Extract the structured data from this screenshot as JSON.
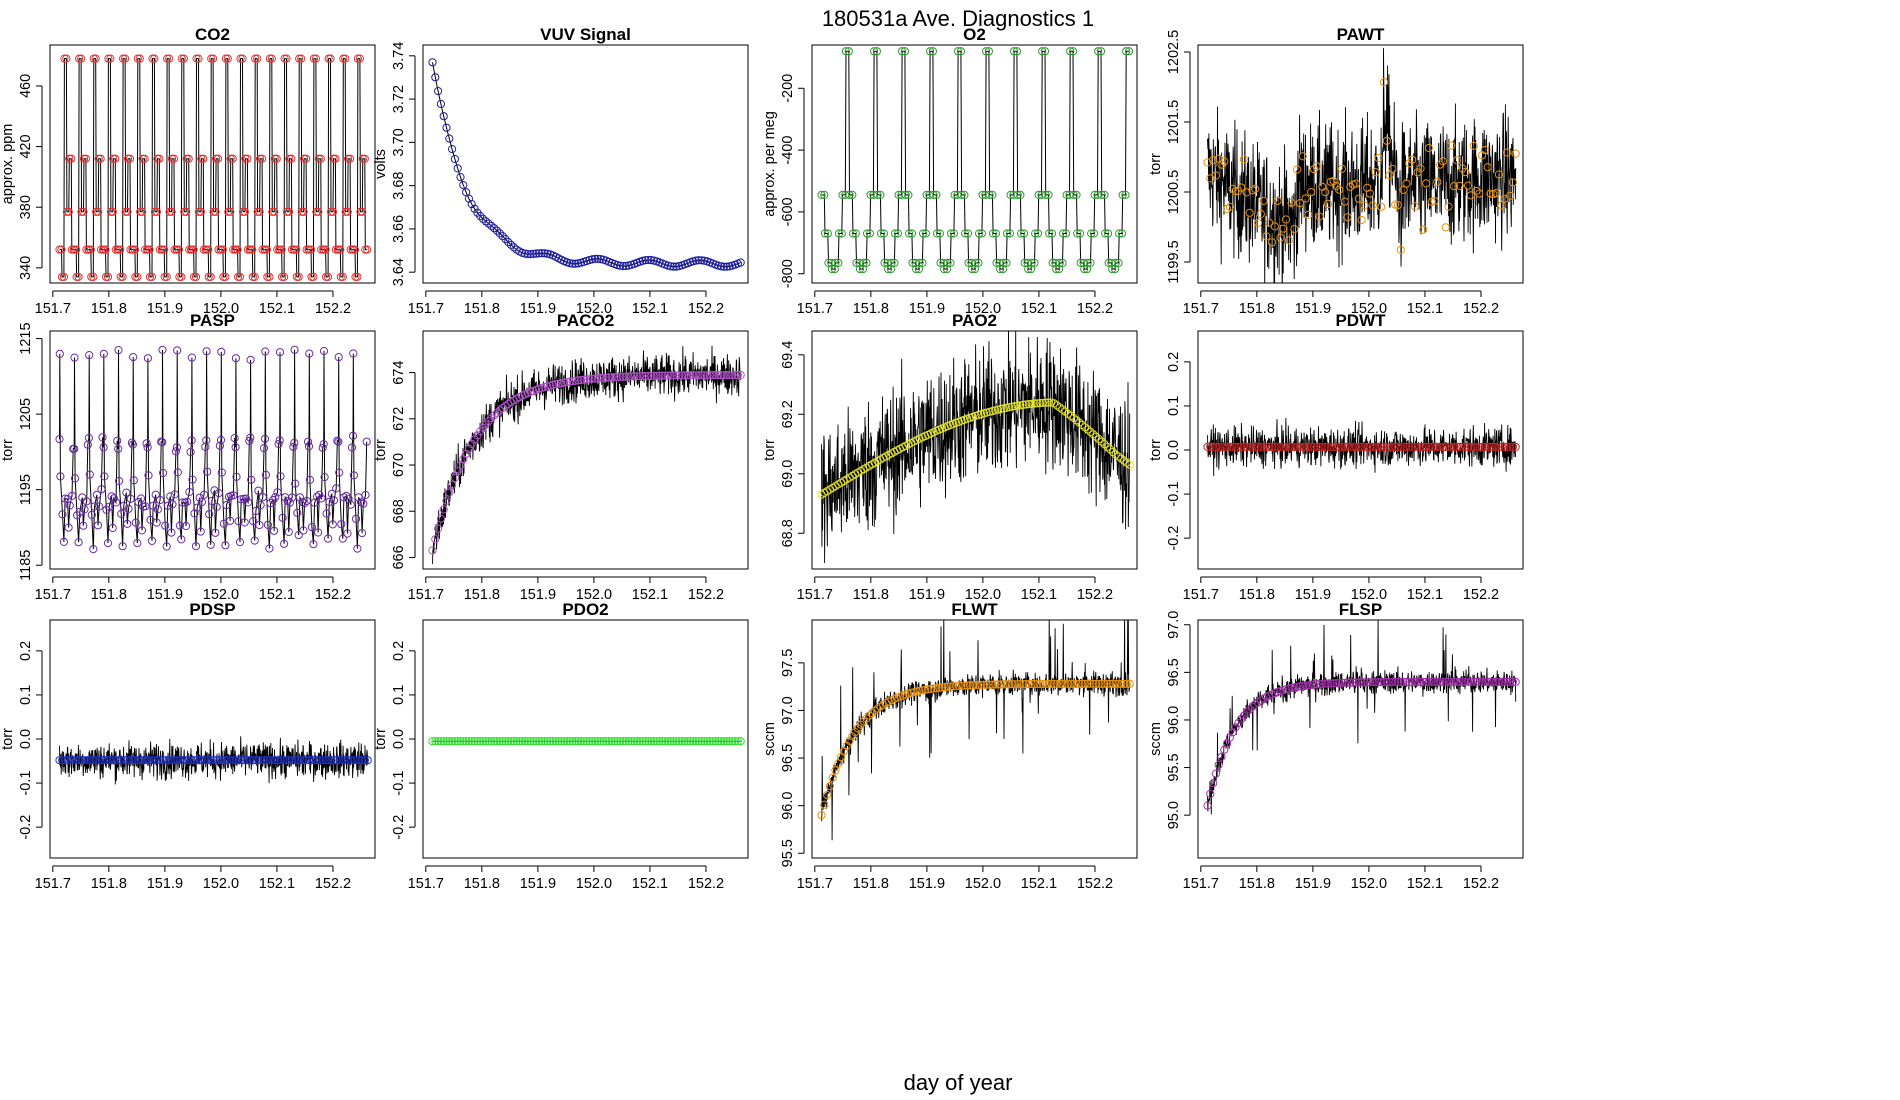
{
  "figure": {
    "title": "180531a   Ave. Diagnostics 1",
    "xlabel": "day of year"
  },
  "colors": {
    "trace": "#000000",
    "co2": "#e03030",
    "vuv": "#1a1aa0",
    "o2": "#2a9a2a",
    "pawt": "#e8900a",
    "pasp": "#6a2aa8",
    "paco2": "#b050c8",
    "pao2": "#e0e020",
    "pdwt": "#c02020",
    "pdsp": "#2030c0",
    "pdo2": "#30e030",
    "flwt": "#e8900a",
    "flsp": "#a030a8"
  },
  "chart_data": [
    {
      "id": "co2",
      "type": "line",
      "title": "CO2",
      "ylabel": "approx. ppm",
      "xlim": [
        151.695,
        152.275
      ],
      "ylim": [
        330,
        487
      ],
      "xticks": [
        "151.7",
        "151.8",
        "151.9",
        "152.0",
        "152.1",
        "152.2"
      ],
      "yticks": [
        "340",
        "380",
        "420",
        "460"
      ],
      "series": [
        {
          "name": "CO2",
          "pattern": "cycle",
          "levels": [
            352,
            334,
            478,
            377,
            412,
            352
          ],
          "cycles": 21,
          "marker_color": "#e03030"
        }
      ]
    },
    {
      "id": "vuv",
      "type": "line",
      "title": "VUV Signal",
      "ylabel": "volts",
      "xlim": [
        151.695,
        152.275
      ],
      "ylim": [
        3.635,
        3.745
      ],
      "xticks": [
        "151.7",
        "151.8",
        "151.9",
        "152.0",
        "152.1",
        "152.2"
      ],
      "yticks": [
        "3.64",
        "3.66",
        "3.68",
        "3.70",
        "3.72",
        "3.74"
      ],
      "series": [
        {
          "name": "VUV",
          "pattern": "decay",
          "start": 3.737,
          "end": 3.644,
          "tau": 0.06,
          "wiggle": 0.0015,
          "marker_color": "#1a1aa0"
        }
      ]
    },
    {
      "id": "o2",
      "type": "line",
      "title": "O2",
      "ylabel": "approx. per meg",
      "xlim": [
        151.695,
        152.275
      ],
      "ylim": [
        -830,
        -60
      ],
      "xticks": [
        "151.7",
        "151.8",
        "151.9",
        "152.0",
        "152.1",
        "152.2"
      ],
      "yticks": [
        "-800",
        "-600",
        "-400",
        "-200"
      ],
      "series": [
        {
          "name": "O2",
          "pattern": "cycle",
          "levels": [
            -545,
            -670,
            -765,
            -785,
            -765,
            -670,
            -545,
            -80
          ],
          "cycles": 11,
          "marker_color": "#2a9a2a"
        }
      ]
    },
    {
      "id": "pawt",
      "type": "line",
      "title": "PAWT",
      "ylabel": "torr",
      "xlim": [
        151.695,
        152.275
      ],
      "ylim": [
        1199.2,
        1202.6
      ],
      "xticks": [
        "151.7",
        "151.8",
        "151.9",
        "152.0",
        "152.1",
        "152.2"
      ],
      "yticks": [
        "1199.5",
        "1200.5",
        "1201.5",
        "1202.5"
      ],
      "series": [
        {
          "name": "PAWT",
          "pattern": "pawt",
          "noise": 0.45,
          "marker_color": "#e8900a"
        }
      ]
    },
    {
      "id": "pasp",
      "type": "line",
      "title": "PASP",
      "ylabel": "torr",
      "xlim": [
        151.695,
        152.275
      ],
      "ylim": [
        1184.5,
        1216
      ],
      "xticks": [
        "151.7",
        "151.8",
        "151.9",
        "152.0",
        "152.1",
        "152.2"
      ],
      "yticks": [
        "1185",
        "1195",
        "1205",
        "1215"
      ],
      "series": [
        {
          "name": "PASP",
          "pattern": "pasp",
          "cycles": 21,
          "marker_color": "#6a2aa8"
        }
      ]
    },
    {
      "id": "paco2",
      "type": "line",
      "title": "PACO2",
      "ylabel": "torr",
      "xlim": [
        151.695,
        152.275
      ],
      "ylim": [
        665.5,
        675.8
      ],
      "xticks": [
        "151.7",
        "151.8",
        "151.9",
        "152.0",
        "152.1",
        "152.2"
      ],
      "yticks": [
        "666",
        "668",
        "670",
        "672",
        "674"
      ],
      "series": [
        {
          "name": "PACO2",
          "pattern": "rise",
          "start": 666.3,
          "end": 673.9,
          "tau": 0.075,
          "noise": 0.45,
          "marker_color": "#b050c8"
        }
      ]
    },
    {
      "id": "pao2",
      "type": "line",
      "title": "PAO2",
      "ylabel": "torr",
      "xlim": [
        151.695,
        152.275
      ],
      "ylim": [
        68.68,
        69.48
      ],
      "xticks": [
        "151.7",
        "151.8",
        "151.9",
        "152.0",
        "152.1",
        "152.2"
      ],
      "yticks": [
        "68.8",
        "69.0",
        "69.2",
        "69.4"
      ],
      "series": [
        {
          "name": "PAO2",
          "pattern": "arch",
          "noise": 0.11,
          "marker_color": "#e0e020"
        }
      ]
    },
    {
      "id": "pdwt",
      "type": "line",
      "title": "PDWT",
      "ylabel": "torr",
      "xlim": [
        151.695,
        152.275
      ],
      "ylim": [
        -0.27,
        0.27
      ],
      "xticks": [
        "151.7",
        "151.8",
        "151.9",
        "152.0",
        "152.1",
        "152.2"
      ],
      "yticks": [
        "-0.2",
        "-0.1",
        "0.0",
        "0.1",
        "0.2"
      ],
      "series": [
        {
          "name": "PDWT",
          "pattern": "flat",
          "level": 0.007,
          "noise": 0.022,
          "marker_color": "#c02020"
        }
      ]
    },
    {
      "id": "pdsp",
      "type": "line",
      "title": "PDSP",
      "ylabel": "torr",
      "xlim": [
        151.695,
        152.275
      ],
      "ylim": [
        -0.27,
        0.27
      ],
      "xticks": [
        "151.7",
        "151.8",
        "151.9",
        "152.0",
        "152.1",
        "152.2"
      ],
      "yticks": [
        "-0.2",
        "-0.1",
        "0.0",
        "0.1",
        "0.2"
      ],
      "series": [
        {
          "name": "PDSP",
          "pattern": "flat",
          "level": -0.048,
          "noise": 0.02,
          "marker_color": "#2030c0"
        }
      ]
    },
    {
      "id": "pdo2",
      "type": "line",
      "title": "PDO2",
      "ylabel": "torr",
      "xlim": [
        151.695,
        152.275
      ],
      "ylim": [
        -0.27,
        0.27
      ],
      "xticks": [
        "151.7",
        "151.8",
        "151.9",
        "152.0",
        "152.1",
        "152.2"
      ],
      "yticks": [
        "-0.2",
        "-0.1",
        "0.0",
        "0.1",
        "0.2"
      ],
      "series": [
        {
          "name": "PDO2",
          "pattern": "flat",
          "level": -0.005,
          "noise": 0.0,
          "marker_color": "#30e030"
        }
      ]
    },
    {
      "id": "flwt",
      "type": "line",
      "title": "FLWT",
      "ylabel": "sccm",
      "xlim": [
        151.695,
        152.275
      ],
      "ylim": [
        95.45,
        97.95
      ],
      "xticks": [
        "151.7",
        "151.8",
        "151.9",
        "152.0",
        "152.1",
        "152.2"
      ],
      "yticks": [
        "95.5",
        "96.0",
        "96.5",
        "97.0",
        "97.5"
      ],
      "series": [
        {
          "name": "FLWT",
          "pattern": "rise",
          "start": 95.9,
          "end": 97.28,
          "tau": 0.06,
          "noise": 0.06,
          "spikes": 0.55,
          "marker_color": "#e8900a"
        }
      ]
    },
    {
      "id": "flsp",
      "type": "line",
      "title": "FLSP",
      "ylabel": "sccm",
      "xlim": [
        151.695,
        152.275
      ],
      "ylim": [
        94.55,
        97.05
      ],
      "xticks": [
        "151.7",
        "151.8",
        "151.9",
        "152.0",
        "152.1",
        "152.2"
      ],
      "yticks": [
        "95.0",
        "95.5",
        "96.0",
        "96.5",
        "97.0"
      ],
      "series": [
        {
          "name": "FLSP",
          "pattern": "rise",
          "start": 95.1,
          "end": 96.4,
          "tau": 0.05,
          "noise": 0.06,
          "spikes": 0.5,
          "marker_color": "#a030a8"
        }
      ]
    }
  ]
}
